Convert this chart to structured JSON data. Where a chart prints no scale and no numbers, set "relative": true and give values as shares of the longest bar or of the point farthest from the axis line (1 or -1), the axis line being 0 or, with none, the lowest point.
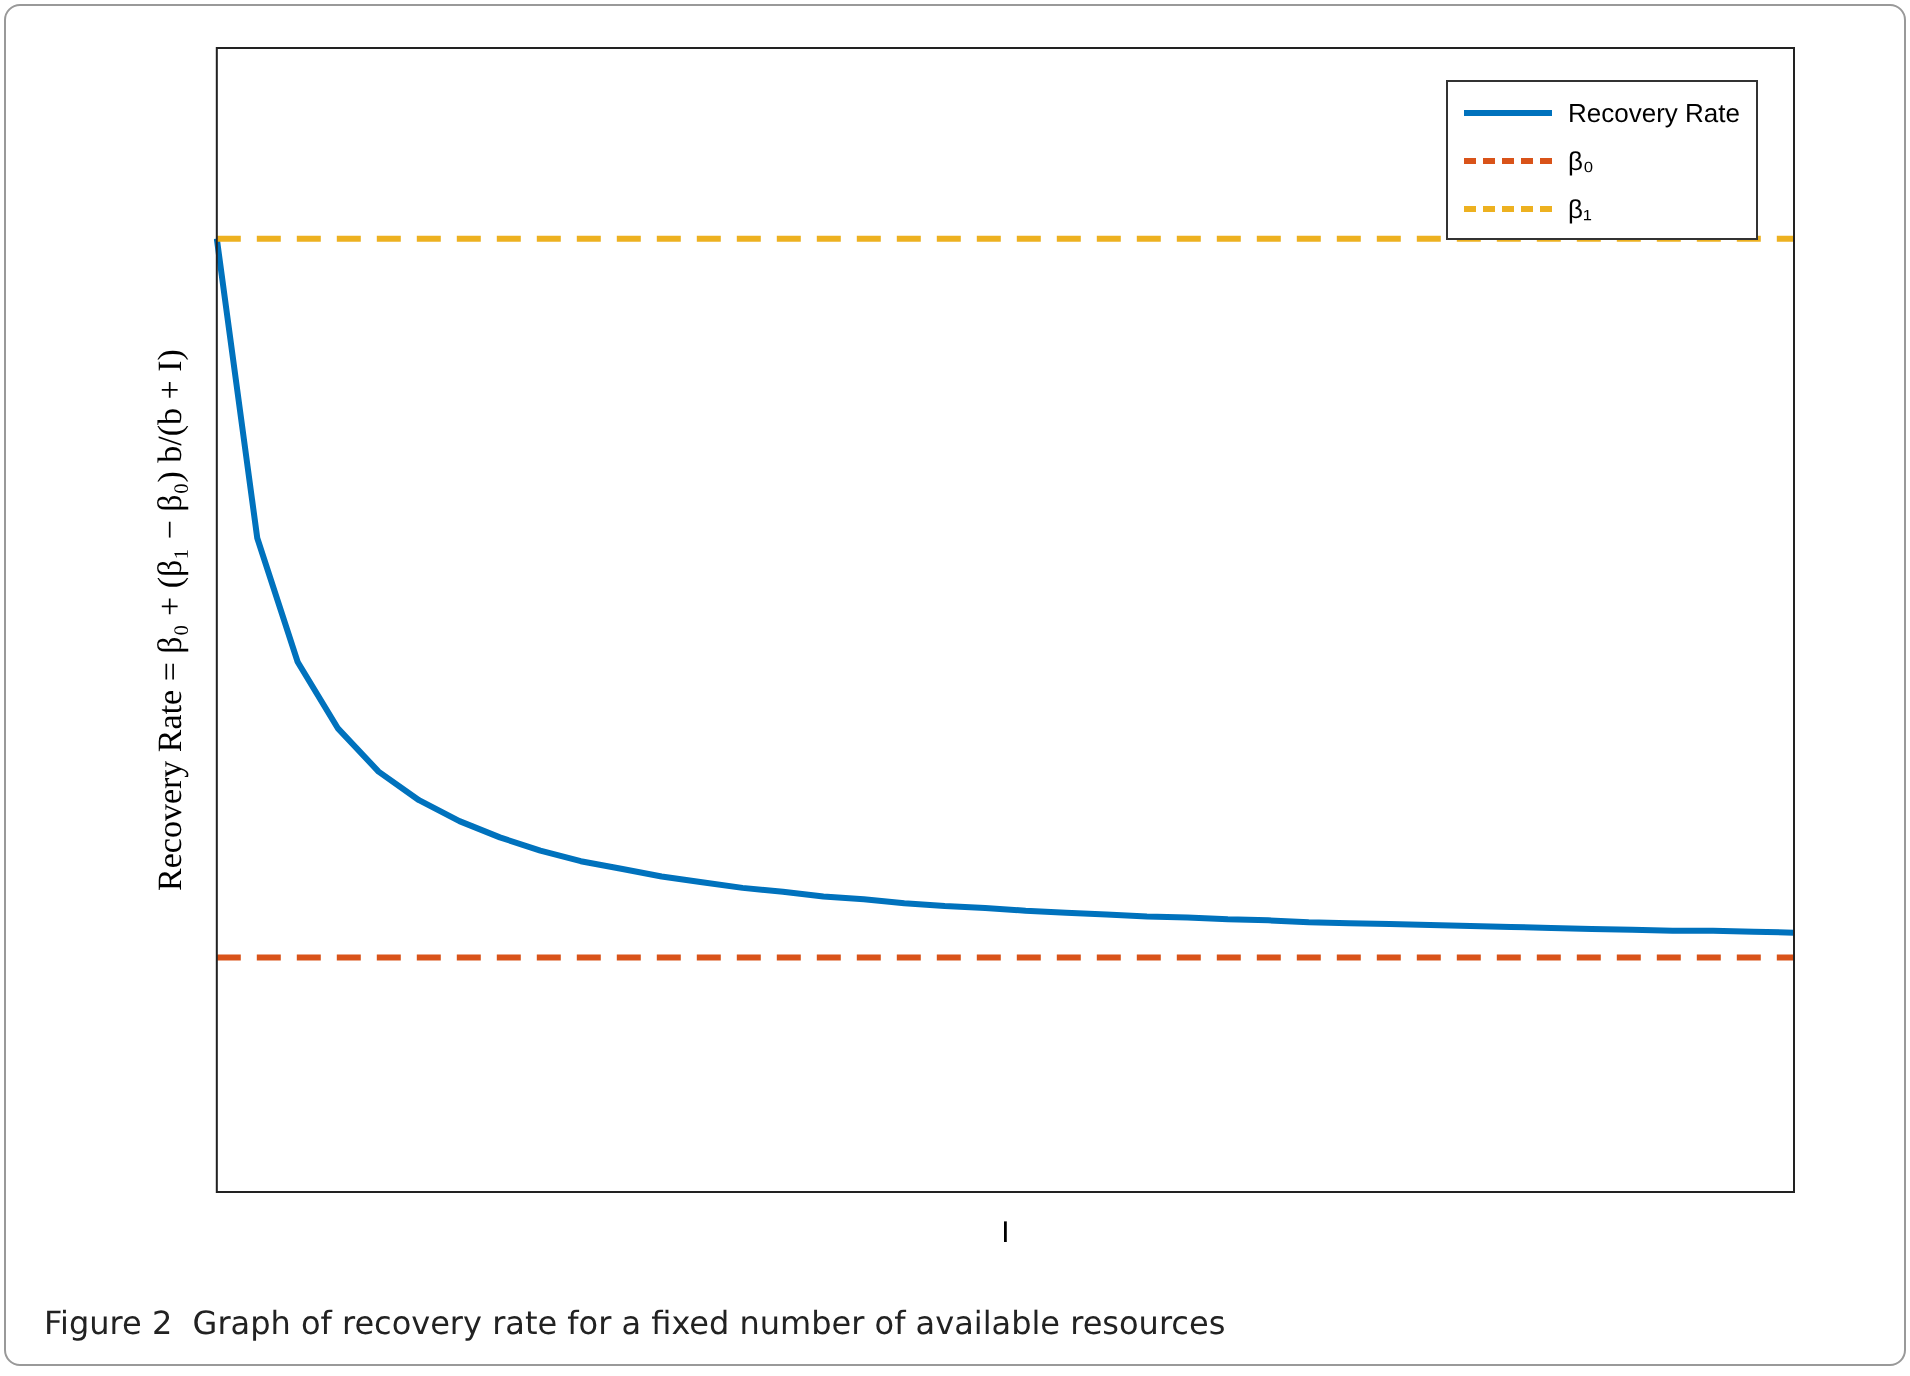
{
  "chart_data": {
    "type": "line",
    "relative": true,
    "xlabel": "I",
    "ylabel": "Recovery Rate = β₀ + (β₁ − β₀) b/(b + I)",
    "legend": "top right",
    "line_style": "solid",
    "marker": "none",
    "categories": [
      null,
      null,
      null,
      null,
      null,
      null,
      null,
      null,
      null,
      null,
      null,
      null,
      null,
      null,
      null,
      null,
      null,
      null,
      null,
      null,
      null,
      null,
      null,
      null,
      null,
      null,
      null,
      null,
      null,
      null,
      null,
      null,
      null,
      null,
      null,
      null,
      null,
      null,
      null,
      null
    ],
    "series": [
      {
        "name": "Recovery Rate",
        "color": "#0072bd",
        "values": [
          1.0,
          0.686,
          0.556,
          0.486,
          0.441,
          0.411,
          0.389,
          0.372,
          0.358,
          0.347,
          0.339,
          0.331,
          0.325,
          0.319,
          0.315,
          0.31,
          0.307,
          0.303,
          0.3,
          0.298,
          0.295,
          0.293,
          0.291,
          0.289,
          0.288,
          0.286,
          0.285,
          0.283,
          0.282,
          0.281,
          0.28,
          0.279,
          0.278,
          0.277,
          0.276,
          0.275,
          0.274,
          0.274,
          0.273,
          0.272
        ]
      }
    ],
    "ref_lines": [
      {
        "axis": "y",
        "value": 0.246,
        "label": "β₀",
        "color": "#d95319",
        "line_style": "dashed"
      },
      {
        "axis": "y",
        "value": 1.0,
        "label": "β₁",
        "color": "#edb120",
        "line_style": "dashed"
      }
    ],
    "annotations": [
      "Figure 2  Graph of recovery rate for a fixed number of available resources"
    ]
  }
}
